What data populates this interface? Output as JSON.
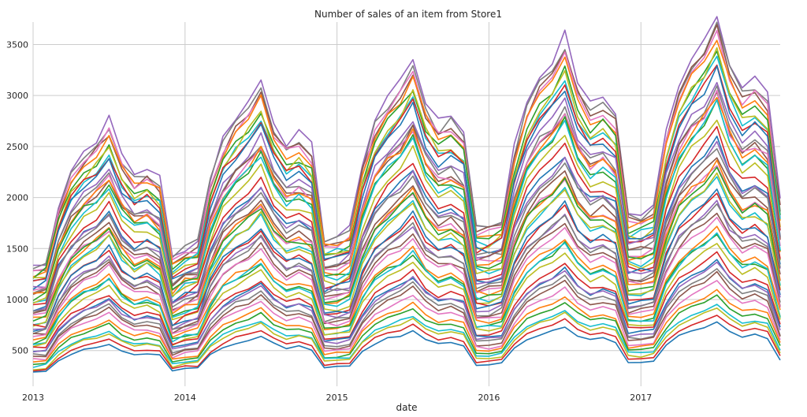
{
  "chart_data": {
    "type": "line",
    "title": "Number of sales of an item from Store1",
    "xlabel": "date",
    "ylabel": "",
    "x_ticks": [
      "2013",
      "2014",
      "2015",
      "2016",
      "2017"
    ],
    "y_ticks": [
      500,
      1000,
      1500,
      2000,
      2500,
      3000,
      3500
    ],
    "ylim": [
      150,
      3720
    ],
    "xlim": [
      "2013-01",
      "2017-12"
    ],
    "grid": true,
    "legend": "none",
    "frequency": "monthly",
    "n_series": 50,
    "x": [
      "2013-01",
      "2013-02",
      "2013-03",
      "2013-04",
      "2013-05",
      "2013-06",
      "2013-07",
      "2013-08",
      "2013-09",
      "2013-10",
      "2013-11",
      "2013-12",
      "2014-01",
      "2014-02",
      "2014-03",
      "2014-04",
      "2014-05",
      "2014-06",
      "2014-07",
      "2014-08",
      "2014-09",
      "2014-10",
      "2014-11",
      "2014-12",
      "2015-01",
      "2015-02",
      "2015-03",
      "2015-04",
      "2015-05",
      "2015-06",
      "2015-07",
      "2015-08",
      "2015-09",
      "2015-10",
      "2015-11",
      "2015-12",
      "2016-01",
      "2016-02",
      "2016-03",
      "2016-04",
      "2016-05",
      "2016-06",
      "2016-07",
      "2016-08",
      "2016-09",
      "2016-10",
      "2016-11",
      "2016-12",
      "2017-01",
      "2017-02",
      "2017-03",
      "2017-04",
      "2017-05",
      "2017-06",
      "2017-07",
      "2017-08",
      "2017-09",
      "2017-10",
      "2017-11",
      "2017-12"
    ],
    "series_template": {
      "peak_values": [
        3560,
        3300,
        3100,
        2900,
        2750,
        2600,
        2450,
        2300,
        2200,
        2100,
        2000,
        1900,
        1800,
        1700,
        1600,
        1500,
        1400,
        1300,
        1200,
        1100,
        1000,
        900,
        850,
        750
      ],
      "peak_month": "2017-07",
      "low_month": "2013-01",
      "low_values": [
        1350,
        1250,
        1150,
        1050,
        950,
        900,
        850,
        800,
        750,
        700,
        650,
        600,
        560,
        520,
        480,
        440,
        400,
        360,
        320,
        280
      ]
    },
    "colors": [
      "#9467bd",
      "#7f7f7f",
      "#8c564b",
      "#e377c2",
      "#ff7f0e",
      "#2ca02c",
      "#17becf",
      "#bcbd22",
      "#d62728",
      "#1f77b4"
    ]
  }
}
